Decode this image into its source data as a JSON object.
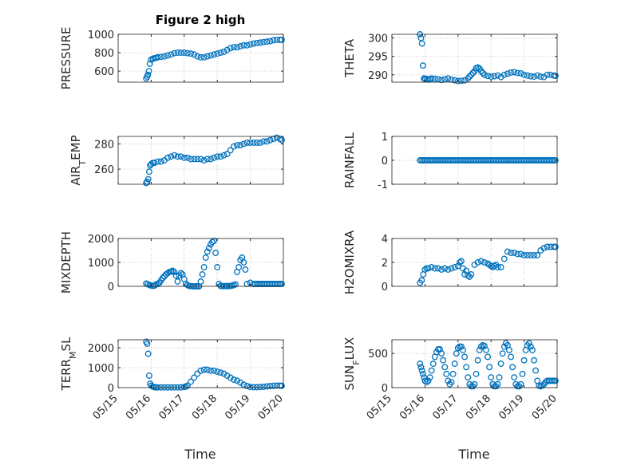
{
  "figure": {
    "title": "Figure 2 high",
    "xlabel": "Time"
  },
  "colors": {
    "marker": "#0072BD",
    "axes": "#262626",
    "grid": "#c8c8c8",
    "background": "#ffffff"
  },
  "chart_data": [
    {
      "type": "scatter",
      "ylabel": "PRESSURE",
      "title": "Figure 2 high",
      "ylim": [
        480,
        1000
      ],
      "yticks": [
        600,
        800,
        1000
      ],
      "xlim": [
        0,
        5
      ],
      "xticks_shown": false,
      "x": [
        0.85,
        0.88,
        0.9,
        0.93,
        0.96,
        1.0,
        1.05,
        1.1,
        1.15,
        1.2,
        1.3,
        1.4,
        1.5,
        1.6,
        1.7,
        1.8,
        1.9,
        2.0,
        2.1,
        2.2,
        2.3,
        2.4,
        2.5,
        2.6,
        2.7,
        2.8,
        2.9,
        3.0,
        3.1,
        3.2,
        3.3,
        3.4,
        3.5,
        3.6,
        3.7,
        3.8,
        3.9,
        4.0,
        4.1,
        4.2,
        4.3,
        4.4,
        4.5,
        4.6,
        4.7,
        4.8,
        4.9,
        4.95
      ],
      "y": [
        520,
        540,
        560,
        600,
        680,
        725,
        735,
        740,
        745,
        750,
        755,
        760,
        770,
        780,
        795,
        800,
        800,
        800,
        795,
        790,
        780,
        760,
        750,
        750,
        760,
        770,
        780,
        790,
        800,
        810,
        830,
        850,
        860,
        860,
        870,
        880,
        880,
        890,
        900,
        905,
        910,
        915,
        920,
        925,
        935,
        940,
        940,
        940
      ]
    },
    {
      "type": "scatter",
      "ylabel": "THETA",
      "ylim": [
        288,
        301
      ],
      "yticks": [
        290,
        295,
        300
      ],
      "xlim": [
        0,
        5
      ],
      "xticks_shown": false,
      "x": [
        0.85,
        0.88,
        0.91,
        0.94,
        0.97,
        1.0,
        1.05,
        1.1,
        1.15,
        1.2,
        1.3,
        1.4,
        1.5,
        1.6,
        1.7,
        1.8,
        1.9,
        2.0,
        2.1,
        2.2,
        2.3,
        2.35,
        2.4,
        2.45,
        2.5,
        2.55,
        2.6,
        2.65,
        2.7,
        2.75,
        2.8,
        2.9,
        3.0,
        3.1,
        3.2,
        3.3,
        3.4,
        3.5,
        3.6,
        3.7,
        3.8,
        3.9,
        4.0,
        4.1,
        4.2,
        4.3,
        4.4,
        4.5,
        4.6,
        4.7,
        4.8,
        4.9,
        4.95
      ],
      "y": [
        301,
        300,
        298.5,
        292.5,
        289,
        288.8,
        288.9,
        288.7,
        288.8,
        289,
        288.9,
        288.8,
        288.6,
        288.8,
        289,
        288.7,
        288.5,
        288.3,
        288.4,
        288.5,
        289,
        289.5,
        290,
        290.5,
        291,
        291.8,
        292,
        291.7,
        291,
        290.5,
        290,
        289.7,
        289.5,
        289.6,
        289.8,
        289.4,
        290,
        290.3,
        290.6,
        290.7,
        290.5,
        290.4,
        290,
        289.8,
        289.6,
        289.5,
        289.8,
        289.5,
        289.4,
        290,
        290,
        289.8,
        289.7
      ]
    },
    {
      "type": "scatter",
      "ylabel": "AIR_TEMP",
      "ylim": [
        248,
        286
      ],
      "yticks": [
        260,
        280
      ],
      "xlim": [
        0,
        5
      ],
      "xticks_shown": false,
      "x": [
        0.85,
        0.88,
        0.91,
        0.94,
        0.97,
        1.0,
        1.05,
        1.1,
        1.2,
        1.3,
        1.4,
        1.5,
        1.6,
        1.7,
        1.8,
        1.9,
        2.0,
        2.1,
        2.2,
        2.3,
        2.4,
        2.5,
        2.6,
        2.7,
        2.8,
        2.9,
        3.0,
        3.1,
        3.2,
        3.3,
        3.4,
        3.5,
        3.6,
        3.7,
        3.8,
        3.9,
        4.0,
        4.1,
        4.2,
        4.3,
        4.4,
        4.5,
        4.6,
        4.7,
        4.8,
        4.9,
        4.95
      ],
      "y": [
        249,
        250,
        252,
        258,
        263,
        264,
        265,
        265,
        266,
        266,
        267,
        269,
        270,
        271,
        270,
        270,
        269,
        269,
        268,
        268,
        268,
        268,
        267,
        268,
        268,
        269,
        270,
        270,
        271,
        272,
        275,
        278,
        279,
        279,
        280,
        281,
        281,
        281,
        281,
        281,
        282,
        282,
        283,
        284,
        285,
        284,
        283
      ]
    },
    {
      "type": "scatter",
      "ylabel": "RAINFALL",
      "ylim": [
        -1,
        1
      ],
      "yticks": [
        -1,
        0,
        1
      ],
      "xlim": [
        0,
        5
      ],
      "xticks_shown": false,
      "x": [
        0.85,
        0.9,
        0.95,
        1.0,
        1.05,
        1.1,
        1.15,
        1.2,
        1.25,
        1.3,
        1.35,
        1.4,
        1.45,
        1.5,
        1.55,
        1.6,
        1.65,
        1.7,
        1.75,
        1.8,
        1.85,
        1.9,
        1.95,
        2.0,
        2.05,
        2.1,
        2.15,
        2.2,
        2.25,
        2.3,
        2.35,
        2.4,
        2.45,
        2.5,
        2.55,
        2.6,
        2.65,
        2.7,
        2.75,
        2.8,
        2.85,
        2.9,
        2.95,
        3.0,
        3.05,
        3.1,
        3.15,
        3.2,
        3.25,
        3.3,
        3.35,
        3.4,
        3.45,
        3.5,
        3.55,
        3.6,
        3.65,
        3.7,
        3.75,
        3.8,
        3.85,
        3.9,
        3.95,
        4.0,
        4.05,
        4.1,
        4.15,
        4.2,
        4.25,
        4.3,
        4.35,
        4.4,
        4.45,
        4.5,
        4.55,
        4.6,
        4.65,
        4.7,
        4.75,
        4.8,
        4.85,
        4.9,
        4.95
      ],
      "y": [
        0,
        0,
        0,
        0,
        0,
        0,
        0,
        0,
        0,
        0,
        0,
        0,
        0,
        0,
        0,
        0,
        0,
        0,
        0,
        0,
        0,
        0,
        0,
        0,
        0,
        0,
        0,
        0,
        0,
        0,
        0,
        0,
        0,
        0,
        0,
        0,
        0,
        0,
        0,
        0,
        0,
        0,
        0,
        0,
        0,
        0,
        0,
        0,
        0,
        0,
        0,
        0,
        0,
        0,
        0,
        0,
        0,
        0,
        0,
        0,
        0,
        0,
        0,
        0,
        0,
        0,
        0,
        0,
        0,
        0,
        0,
        0,
        0,
        0,
        0,
        0,
        0,
        0,
        0,
        0,
        0,
        0,
        0
      ]
    },
    {
      "type": "scatter",
      "ylabel": "MIXDEPTH",
      "ylim": [
        0,
        2000
      ],
      "yticks": [
        0,
        1000,
        2000
      ],
      "xlim": [
        0,
        5
      ],
      "xticks_shown": false,
      "x": [
        0.85,
        0.9,
        0.95,
        1.0,
        1.05,
        1.1,
        1.15,
        1.2,
        1.25,
        1.3,
        1.35,
        1.4,
        1.45,
        1.5,
        1.55,
        1.6,
        1.65,
        1.7,
        1.75,
        1.8,
        1.85,
        1.9,
        1.95,
        2.0,
        2.05,
        2.1,
        2.15,
        2.2,
        2.25,
        2.3,
        2.35,
        2.4,
        2.45,
        2.5,
        2.55,
        2.6,
        2.65,
        2.7,
        2.75,
        2.8,
        2.85,
        2.9,
        2.95,
        3.0,
        3.05,
        3.1,
        3.15,
        3.2,
        3.25,
        3.28,
        3.3,
        3.35,
        3.4,
        3.45,
        3.5,
        3.55,
        3.6,
        3.65,
        3.7,
        3.75,
        3.8,
        3.85,
        3.9,
        4.0,
        4.1,
        4.15,
        4.2,
        4.25,
        4.3,
        4.35,
        4.4,
        4.45,
        4.5,
        4.55,
        4.6,
        4.65,
        4.7,
        4.75,
        4.8,
        4.85,
        4.9,
        4.95
      ],
      "y": [
        120,
        90,
        50,
        30,
        20,
        30,
        80,
        100,
        150,
        250,
        350,
        420,
        500,
        550,
        600,
        620,
        650,
        600,
        450,
        200,
        450,
        550,
        500,
        300,
        100,
        50,
        20,
        10,
        0,
        0,
        0,
        0,
        0,
        200,
        500,
        800,
        1200,
        1450,
        1600,
        1750,
        1850,
        1900,
        1400,
        800,
        100,
        20,
        10,
        10,
        10,
        10,
        10,
        10,
        20,
        30,
        50,
        80,
        600,
        800,
        1100,
        1200,
        1000,
        700,
        100,
        150,
        100,
        100,
        100,
        100,
        100,
        100,
        100,
        100,
        100,
        100,
        100,
        100,
        100,
        100,
        100,
        100,
        100,
        100
      ],
      "note": ""
    },
    {
      "type": "scatter",
      "ylabel": "H2OMIXRA",
      "ylim": [
        0,
        4
      ],
      "yticks": [
        0,
        2,
        4
      ],
      "xlim": [
        0,
        5
      ],
      "xticks_shown": false,
      "x": [
        0.85,
        0.9,
        0.95,
        1.0,
        1.05,
        1.1,
        1.2,
        1.3,
        1.4,
        1.5,
        1.6,
        1.7,
        1.8,
        1.9,
        2.0,
        2.05,
        2.1,
        2.15,
        2.2,
        2.25,
        2.3,
        2.35,
        2.4,
        2.5,
        2.6,
        2.7,
        2.8,
        2.9,
        2.95,
        3.0,
        3.05,
        3.1,
        3.15,
        3.2,
        3.3,
        3.4,
        3.5,
        3.6,
        3.7,
        3.8,
        3.9,
        4.0,
        4.1,
        4.2,
        4.3,
        4.4,
        4.5,
        4.6,
        4.7,
        4.8,
        4.9,
        4.95
      ],
      "y": [
        0.3,
        0.5,
        1.0,
        1.4,
        1.5,
        1.5,
        1.6,
        1.5,
        1.5,
        1.4,
        1.5,
        1.4,
        1.5,
        1.6,
        1.7,
        2.0,
        2.1,
        1.5,
        1.0,
        1.3,
        0.9,
        0.8,
        1.0,
        1.8,
        2.0,
        2.1,
        2.0,
        1.9,
        1.8,
        1.7,
        1.6,
        1.7,
        1.8,
        1.6,
        1.6,
        2.3,
        2.9,
        2.8,
        2.8,
        2.7,
        2.7,
        2.6,
        2.6,
        2.6,
        2.6,
        2.6,
        3.0,
        3.2,
        3.3,
        3.3,
        3.3,
        3.3
      ]
    },
    {
      "type": "scatter",
      "ylabel": "TERR_MSL",
      "ylim": [
        0,
        2400
      ],
      "yticks": [
        0,
        1000,
        2000
      ],
      "xlim": [
        0,
        5
      ],
      "xticks": [
        "05/15",
        "05/16",
        "05/17",
        "05/18",
        "05/19",
        "05/20"
      ],
      "xlabel": "Time",
      "x": [
        0.85,
        0.88,
        0.91,
        0.94,
        0.97,
        1.0,
        1.05,
        1.1,
        1.15,
        1.2,
        1.3,
        1.4,
        1.5,
        1.6,
        1.7,
        1.8,
        1.9,
        2.0,
        2.05,
        2.1,
        2.2,
        2.3,
        2.4,
        2.5,
        2.6,
        2.7,
        2.8,
        2.9,
        3.0,
        3.1,
        3.2,
        3.3,
        3.4,
        3.5,
        3.6,
        3.7,
        3.8,
        3.9,
        4.0,
        4.1,
        4.2,
        4.3,
        4.4,
        4.5,
        4.6,
        4.7,
        4.8,
        4.9,
        4.95
      ],
      "y": [
        2300,
        2200,
        1700,
        600,
        200,
        100,
        50,
        20,
        10,
        10,
        10,
        10,
        10,
        10,
        10,
        10,
        10,
        30,
        50,
        100,
        300,
        500,
        700,
        850,
        900,
        900,
        850,
        850,
        800,
        750,
        700,
        600,
        500,
        400,
        350,
        250,
        150,
        80,
        30,
        20,
        20,
        30,
        40,
        60,
        80,
        90,
        100,
        100,
        90
      ]
    },
    {
      "type": "scatter",
      "ylabel": "SUN_FLUX",
      "ylim": [
        0,
        700
      ],
      "yticks": [
        0,
        500
      ],
      "xlim": [
        0,
        5
      ],
      "xticks": [
        "05/15",
        "05/16",
        "05/17",
        "05/18",
        "05/19",
        "05/20"
      ],
      "xlabel": "Time",
      "x": [
        0.85,
        0.88,
        0.91,
        0.94,
        0.97,
        1.0,
        1.05,
        1.1,
        1.15,
        1.2,
        1.25,
        1.3,
        1.35,
        1.4,
        1.45,
        1.5,
        1.55,
        1.6,
        1.65,
        1.7,
        1.75,
        1.8,
        1.85,
        1.9,
        1.95,
        2.0,
        2.05,
        2.1,
        2.15,
        2.2,
        2.25,
        2.3,
        2.35,
        2.4,
        2.45,
        2.5,
        2.55,
        2.6,
        2.65,
        2.7,
        2.75,
        2.8,
        2.85,
        2.9,
        2.95,
        3.0,
        3.05,
        3.1,
        3.15,
        3.2,
        3.25,
        3.3,
        3.35,
        3.4,
        3.45,
        3.5,
        3.55,
        3.6,
        3.65,
        3.7,
        3.75,
        3.8,
        3.85,
        3.9,
        3.95,
        4.0,
        4.05,
        4.1,
        4.15,
        4.2,
        4.25,
        4.3,
        4.35,
        4.4,
        4.45,
        4.5,
        4.55,
        4.6,
        4.65,
        4.7,
        4.75,
        4.8,
        4.85,
        4.9,
        4.95
      ],
      "y": [
        350,
        300,
        250,
        200,
        150,
        100,
        80,
        100,
        150,
        250,
        350,
        450,
        520,
        560,
        560,
        500,
        400,
        300,
        200,
        100,
        50,
        80,
        200,
        350,
        500,
        580,
        600,
        600,
        550,
        450,
        300,
        150,
        50,
        20,
        20,
        50,
        200,
        400,
        550,
        600,
        620,
        610,
        550,
        450,
        300,
        150,
        50,
        20,
        20,
        50,
        150,
        350,
        500,
        600,
        650,
        620,
        550,
        450,
        300,
        150,
        50,
        20,
        20,
        50,
        200,
        400,
        550,
        620,
        650,
        600,
        550,
        400,
        250,
        100,
        30,
        20,
        30,
        50,
        80,
        100,
        100,
        100,
        100,
        100,
        100
      ]
    }
  ]
}
